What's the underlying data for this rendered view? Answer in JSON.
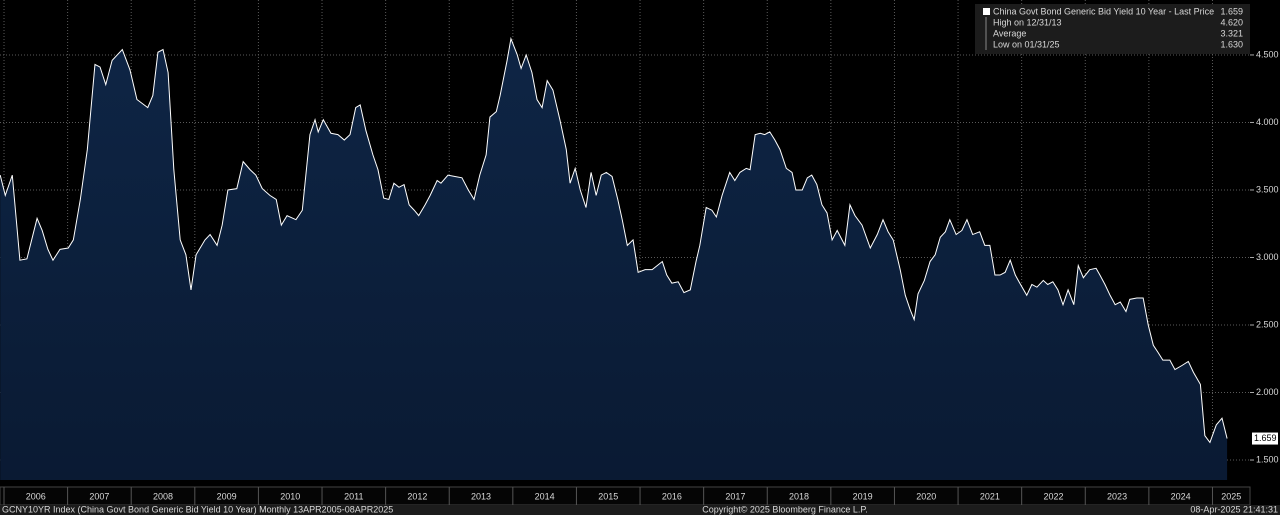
{
  "chart_data": {
    "type": "area",
    "series": [
      {
        "name": "China Govt Bond Generic Bid Yield 10 Year - Last Price",
        "color": "#ffffff",
        "fill": "#0e2545",
        "x": [
          2005.94,
          2006.02,
          2006.13,
          2006.25,
          2006.36,
          2006.52,
          2006.6,
          2006.69,
          2006.77,
          2006.88,
          2007.01,
          2007.09,
          2007.2,
          2007.31,
          2007.43,
          2007.51,
          2007.6,
          2007.7,
          2007.86,
          2007.98,
          2008.09,
          2008.26,
          2008.34,
          2008.42,
          2008.5,
          2008.58,
          2008.67,
          2008.77,
          2008.86,
          2008.94,
          2009.02,
          2009.16,
          2009.24,
          2009.35,
          2009.43,
          2009.52,
          2009.66,
          2009.76,
          2009.87,
          2009.96,
          2010.06,
          2010.18,
          2010.28,
          2010.36,
          2010.45,
          2010.59,
          2010.69,
          2010.81,
          2010.89,
          2010.94,
          2011.02,
          2011.14,
          2011.25,
          2011.35,
          2011.44,
          2011.53,
          2011.6,
          2011.69,
          2011.8,
          2011.88,
          2011.97,
          2012.05,
          2012.13,
          2012.21,
          2012.29,
          2012.37,
          2012.45,
          2012.52,
          2012.62,
          2012.7,
          2012.81,
          2012.87,
          2012.98,
          2013.09,
          2013.2,
          2013.3,
          2013.39,
          2013.48,
          2013.58,
          2013.64,
          2013.74,
          2013.8,
          2013.91,
          2013.97,
          2014.07,
          2014.13,
          2014.21,
          2014.3,
          2014.38,
          2014.46,
          2014.54,
          2014.63,
          2014.74,
          2014.84,
          2014.9,
          2014.98,
          2015.06,
          2015.15,
          2015.23,
          2015.31,
          2015.39,
          2015.47,
          2015.56,
          2015.65,
          2015.72,
          2015.8,
          2015.89,
          2015.97,
          2016.08,
          2016.19,
          2016.35,
          2016.42,
          2016.5,
          2016.6,
          2016.69,
          2016.79,
          2016.88,
          2016.94,
          2017.04,
          2017.13,
          2017.2,
          2017.29,
          2017.41,
          2017.49,
          2017.57,
          2017.67,
          2017.73,
          2017.81,
          2017.89,
          2017.96,
          2018.04,
          2018.12,
          2018.2,
          2018.3,
          2018.39,
          2018.45,
          2018.55,
          2018.63,
          2018.7,
          2018.78,
          2018.86,
          2018.94,
          2019.02,
          2019.1,
          2019.22,
          2019.3,
          2019.38,
          2019.49,
          2019.62,
          2019.73,
          2019.82,
          2019.9,
          2019.98,
          2020.09,
          2020.17,
          2020.25,
          2020.31,
          2020.37,
          2020.47,
          2020.56,
          2020.64,
          2020.72,
          2020.8,
          2020.87,
          2020.97,
          2021.06,
          2021.14,
          2021.23,
          2021.34,
          2021.42,
          2021.5,
          2021.58,
          2021.66,
          2021.74,
          2021.82,
          2021.9,
          2021.97,
          2022.08,
          2022.16,
          2022.24,
          2022.34,
          2022.41,
          2022.49,
          2022.57,
          2022.65,
          2022.73,
          2022.82,
          2022.89,
          2022.97,
          2023.07,
          2023.17,
          2023.23,
          2023.31,
          2023.39,
          2023.47,
          2023.55,
          2023.64,
          2023.7,
          2023.81,
          2023.91,
          2023.99,
          2024.07,
          2024.14,
          2024.22,
          2024.33,
          2024.41,
          2024.52,
          2024.62,
          2024.7,
          2024.81,
          2024.88,
          2024.96,
          2025.06,
          2025.15,
          2025.23
        ],
        "values": [
          3.61,
          3.46,
          3.61,
          2.98,
          2.99,
          3.29,
          3.2,
          3.06,
          2.98,
          3.06,
          3.07,
          3.13,
          3.43,
          3.8,
          4.43,
          4.41,
          4.28,
          4.46,
          4.54,
          4.39,
          4.17,
          4.11,
          4.2,
          4.52,
          4.54,
          4.37,
          3.65,
          3.13,
          3.02,
          2.76,
          3.02,
          3.13,
          3.17,
          3.09,
          3.24,
          3.5,
          3.51,
          3.71,
          3.65,
          3.61,
          3.51,
          3.46,
          3.43,
          3.24,
          3.31,
          3.28,
          3.35,
          3.91,
          4.02,
          3.93,
          4.02,
          3.92,
          3.91,
          3.87,
          3.91,
          4.11,
          4.13,
          3.94,
          3.76,
          3.65,
          3.44,
          3.43,
          3.55,
          3.52,
          3.54,
          3.39,
          3.35,
          3.31,
          3.39,
          3.46,
          3.57,
          3.55,
          3.61,
          3.6,
          3.59,
          3.5,
          3.43,
          3.61,
          3.76,
          4.04,
          4.08,
          4.2,
          4.46,
          4.62,
          4.5,
          4.4,
          4.5,
          4.37,
          4.17,
          4.11,
          4.31,
          4.24,
          4.02,
          3.8,
          3.55,
          3.66,
          3.5,
          3.37,
          3.63,
          3.46,
          3.61,
          3.63,
          3.6,
          3.43,
          3.28,
          3.09,
          3.13,
          2.89,
          2.91,
          2.91,
          2.97,
          2.87,
          2.81,
          2.82,
          2.74,
          2.76,
          2.97,
          3.09,
          3.37,
          3.35,
          3.3,
          3.46,
          3.63,
          3.57,
          3.63,
          3.66,
          3.65,
          3.91,
          3.92,
          3.91,
          3.93,
          3.87,
          3.8,
          3.66,
          3.63,
          3.5,
          3.5,
          3.59,
          3.61,
          3.54,
          3.39,
          3.33,
          3.13,
          3.2,
          3.09,
          3.39,
          3.31,
          3.24,
          3.07,
          3.17,
          3.28,
          3.19,
          3.13,
          2.91,
          2.72,
          2.61,
          2.54,
          2.73,
          2.83,
          2.97,
          3.02,
          3.15,
          3.19,
          3.28,
          3.17,
          3.2,
          3.28,
          3.17,
          3.19,
          3.09,
          3.09,
          2.87,
          2.87,
          2.89,
          2.98,
          2.87,
          2.81,
          2.72,
          2.8,
          2.78,
          2.83,
          2.8,
          2.82,
          2.76,
          2.65,
          2.76,
          2.65,
          2.94,
          2.85,
          2.91,
          2.92,
          2.87,
          2.8,
          2.72,
          2.65,
          2.67,
          2.6,
          2.69,
          2.7,
          2.7,
          2.5,
          2.35,
          2.3,
          2.24,
          2.24,
          2.17,
          2.2,
          2.23,
          2.15,
          2.06,
          1.68,
          1.63,
          1.76,
          1.81,
          1.659
        ]
      }
    ],
    "last_price": 1.659,
    "stats": [
      {
        "name": "High on 12/31/13",
        "value": 4.62,
        "value_label": "4.620"
      },
      {
        "name": "Average",
        "value": 3.321
      },
      {
        "name": "Low on 01/31/25",
        "value": 1.63,
        "value_label": "1.630"
      }
    ],
    "xlim": [
      2005.937,
      2025.59
    ],
    "xticks": [
      2006,
      2007,
      2008,
      2009,
      2010,
      2011,
      2012,
      2013,
      2014,
      2015,
      2016,
      2017,
      2018,
      2019,
      2020,
      2021,
      2022,
      2023,
      2024,
      2025
    ],
    "ylim": [
      1.352,
      4.907
    ],
    "yticks": [
      {
        "value": 1.5,
        "label": "1.500"
      },
      {
        "value": 2.0,
        "label": "2.000"
      },
      {
        "value": 2.5,
        "label": "2.500"
      },
      {
        "value": 3.0,
        "label": "3.000"
      },
      {
        "value": 3.5,
        "label": "3.500"
      },
      {
        "value": 4.0,
        "label": "4.000"
      },
      {
        "value": 4.5,
        "label": "4.500"
      }
    ],
    "grid": true,
    "footer_left": "GCNY10YR Index (China Govt Bond Generic Bid Yield 10 Year)  Monthly 13APR2005-08APR2025",
    "footer_center": "Copyright© 2025 Bloomberg Finance L.P.",
    "footer_right": "08-Apr-2025 21:41:31"
  }
}
